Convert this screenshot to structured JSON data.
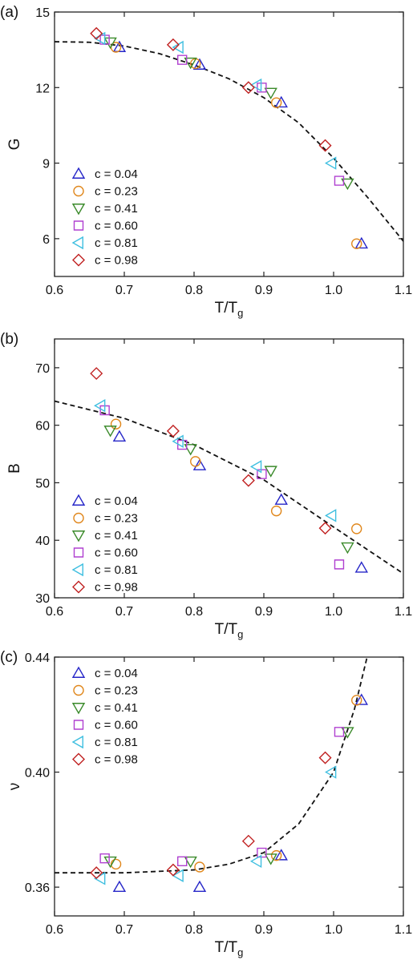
{
  "chart_data": [
    {
      "type": "scatter",
      "label": "(a)",
      "ylabel": "G",
      "xlabel": "T/T",
      "xlabel_sub": "g",
      "xlim": [
        0.6,
        1.1
      ],
      "xticks": [
        0.6,
        0.7,
        0.8,
        0.9,
        {
          "value": 1,
          "label": "1.0"
        },
        1.1
      ],
      "ylim": [
        4.5,
        15
      ],
      "yticks": [
        6,
        9,
        12,
        15
      ],
      "series": [
        {
          "name": "c = 0.04",
          "color": "#2626c8",
          "marker": "triangle-up",
          "x": [
            0.693,
            0.808,
            0.925,
            1.04
          ],
          "values": [
            13.6,
            12.9,
            11.4,
            5.8
          ]
        },
        {
          "name": "c = 0.23",
          "color": "#e0871c",
          "marker": "circle",
          "x": [
            0.688,
            0.802,
            0.918,
            1.033
          ],
          "values": [
            13.6,
            12.95,
            11.4,
            5.8
          ]
        },
        {
          "name": "c = 0.41",
          "color": "#3a8a2a",
          "marker": "triangle-down",
          "x": [
            0.68,
            0.795,
            0.91,
            1.02
          ],
          "values": [
            13.8,
            13.0,
            11.8,
            8.2
          ]
        },
        {
          "name": "c = 0.60",
          "color": "#b040d0",
          "marker": "square",
          "x": [
            0.672,
            0.783,
            0.897,
            1.008
          ],
          "values": [
            13.9,
            13.1,
            12.0,
            8.3
          ]
        },
        {
          "name": "c = 0.81",
          "color": "#3fbfe0",
          "marker": "triangle-left",
          "x": [
            0.666,
            0.778,
            0.89,
            0.997
          ],
          "values": [
            13.95,
            13.6,
            12.1,
            9.0
          ]
        },
        {
          "name": "c = 0.98",
          "color": "#c02020",
          "marker": "diamond",
          "x": [
            0.66,
            0.77,
            0.878,
            0.988
          ],
          "values": [
            14.15,
            13.7,
            12.0,
            9.7
          ]
        }
      ],
      "fit": {
        "x": [
          0.6,
          0.65,
          0.7,
          0.75,
          0.8,
          0.85,
          0.9,
          0.95,
          1.0,
          1.05,
          1.1
        ],
        "y": [
          13.82,
          13.8,
          13.65,
          13.35,
          12.9,
          12.35,
          11.6,
          10.6,
          9.2,
          7.6,
          5.9
        ]
      }
    },
    {
      "type": "scatter",
      "label": "(b)",
      "ylabel": "B",
      "xlabel": "T/T",
      "xlabel_sub": "g",
      "xlim": [
        0.6,
        1.1
      ],
      "xticks": [
        0.6,
        0.7,
        0.8,
        0.9,
        {
          "value": 1,
          "label": "1.0"
        },
        1.1
      ],
      "ylim": [
        30,
        75
      ],
      "yticks": [
        30,
        40,
        50,
        60,
        70
      ],
      "series": [
        {
          "name": "c = 0.04",
          "color": "#2626c8",
          "marker": "triangle-up",
          "x": [
            0.693,
            0.808,
            0.925,
            1.04
          ],
          "values": [
            58,
            53,
            47,
            35.2
          ]
        },
        {
          "name": "c = 0.23",
          "color": "#e0871c",
          "marker": "circle",
          "x": [
            0.688,
            0.802,
            0.918,
            1.033
          ],
          "values": [
            60.2,
            53.7,
            45.1,
            42
          ]
        },
        {
          "name": "c = 0.41",
          "color": "#3a8a2a",
          "marker": "triangle-down",
          "x": [
            0.68,
            0.795,
            0.91,
            1.02
          ],
          "values": [
            59.1,
            55.9,
            52.1,
            38.8
          ]
        },
        {
          "name": "c = 0.60",
          "color": "#b040d0",
          "marker": "square",
          "x": [
            0.672,
            0.783,
            0.897,
            1.008
          ],
          "values": [
            62.6,
            56.6,
            51.5,
            35.8
          ]
        },
        {
          "name": "c = 0.81",
          "color": "#3fbfe0",
          "marker": "triangle-left",
          "x": [
            0.666,
            0.778,
            0.89,
            0.997
          ],
          "values": [
            63.4,
            57.2,
            52.8,
            44.3
          ]
        },
        {
          "name": "c = 0.98",
          "color": "#c02020",
          "marker": "diamond",
          "x": [
            0.66,
            0.77,
            0.878,
            0.988
          ],
          "values": [
            69,
            59,
            50.4,
            42.1
          ]
        }
      ],
      "fit": {
        "x": [
          0.6,
          0.7,
          0.8,
          0.9,
          1.0,
          1.1
        ],
        "y": [
          64.2,
          61.2,
          56.6,
          50.5,
          42.3,
          34.2
        ]
      }
    },
    {
      "type": "scatter",
      "label": "(c)",
      "ylabel": "ν",
      "xlabel": "T/T",
      "xlabel_sub": "g",
      "xlim": [
        0.6,
        1.1
      ],
      "xticks": [
        0.6,
        0.7,
        0.8,
        0.9,
        {
          "value": 1,
          "label": "1.0"
        },
        1.1
      ],
      "ylim": [
        0.35,
        0.44
      ],
      "yticks": [
        0.36,
        {
          "value": 0.4,
          "label": "0.40"
        },
        0.44
      ],
      "series": [
        {
          "name": "c = 0.04",
          "color": "#2626c8",
          "marker": "triangle-up",
          "x": [
            0.693,
            0.808,
            0.925,
            1.04
          ],
          "values": [
            0.36,
            0.36,
            0.371,
            0.425
          ]
        },
        {
          "name": "c = 0.23",
          "color": "#e0871c",
          "marker": "circle",
          "x": [
            0.688,
            0.808,
            0.918,
            1.033
          ],
          "values": [
            0.368,
            0.367,
            0.371,
            0.425
          ]
        },
        {
          "name": "c = 0.41",
          "color": "#3a8a2a",
          "marker": "triangle-down",
          "x": [
            0.68,
            0.795,
            0.91,
            1.02
          ],
          "values": [
            0.369,
            0.369,
            0.37,
            0.414
          ]
        },
        {
          "name": "c = 0.60",
          "color": "#b040d0",
          "marker": "square",
          "x": [
            0.672,
            0.783,
            0.897,
            1.008
          ],
          "values": [
            0.37,
            0.369,
            0.372,
            0.414
          ]
        },
        {
          "name": "c = 0.81",
          "color": "#3fbfe0",
          "marker": "triangle-left",
          "x": [
            0.666,
            0.778,
            0.89,
            0.997
          ],
          "values": [
            0.363,
            0.364,
            0.369,
            0.4
          ]
        },
        {
          "name": "c = 0.98",
          "color": "#c02020",
          "marker": "diamond",
          "x": [
            0.66,
            0.77,
            0.878,
            0.988
          ],
          "values": [
            0.365,
            0.366,
            0.376,
            0.405
          ]
        }
      ],
      "fit": {
        "x": [
          0.6,
          0.7,
          0.8,
          0.85,
          0.9,
          0.95,
          1.0,
          1.03,
          1.048
        ],
        "y": [
          0.365,
          0.365,
          0.366,
          0.368,
          0.372,
          0.382,
          0.4,
          0.422,
          0.44
        ]
      }
    }
  ]
}
